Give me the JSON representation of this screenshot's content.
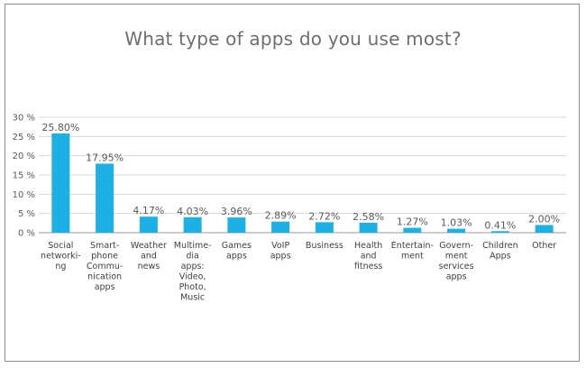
{
  "chart_data": {
    "type": "bar",
    "title": "What type of apps do you use most?",
    "xlabel": "",
    "ylabel": "",
    "ylim": [
      0,
      30
    ],
    "yticks": [
      "0 %",
      "5 %",
      "10 %",
      "15 %",
      "20 %",
      "25 %",
      "30 %"
    ],
    "grid": true,
    "legend": "none",
    "bar_color": "#1cb0e4",
    "categories": [
      [
        "Social",
        "networki-",
        "ng"
      ],
      [
        "Smart-",
        "phone",
        "Commu-",
        "nication",
        "apps"
      ],
      [
        "Weather",
        "and",
        "news"
      ],
      [
        "Multime-",
        "dia",
        "apps:",
        "Video,",
        "Photo,",
        "Music"
      ],
      [
        "Games",
        "apps"
      ],
      [
        "VoIP",
        "apps"
      ],
      [
        "Business"
      ],
      [
        "Health",
        "and",
        "fitness"
      ],
      [
        "Entertain-",
        "ment"
      ],
      [
        "Govern-",
        "ment",
        "services",
        "apps"
      ],
      [
        "Children",
        "Apps"
      ],
      [
        "Other"
      ]
    ],
    "values": [
      25.8,
      17.95,
      4.17,
      4.03,
      3.96,
      2.89,
      2.72,
      2.58,
      1.27,
      1.03,
      0.41,
      2.0
    ],
    "data_labels": [
      "25.80%",
      "17.95%",
      "4.17%",
      "4.03%",
      "3.96%",
      "2.89%",
      "2.72%",
      "2.58%",
      "1.27%",
      "1.03%",
      "0.41%",
      "2.00%"
    ]
  }
}
